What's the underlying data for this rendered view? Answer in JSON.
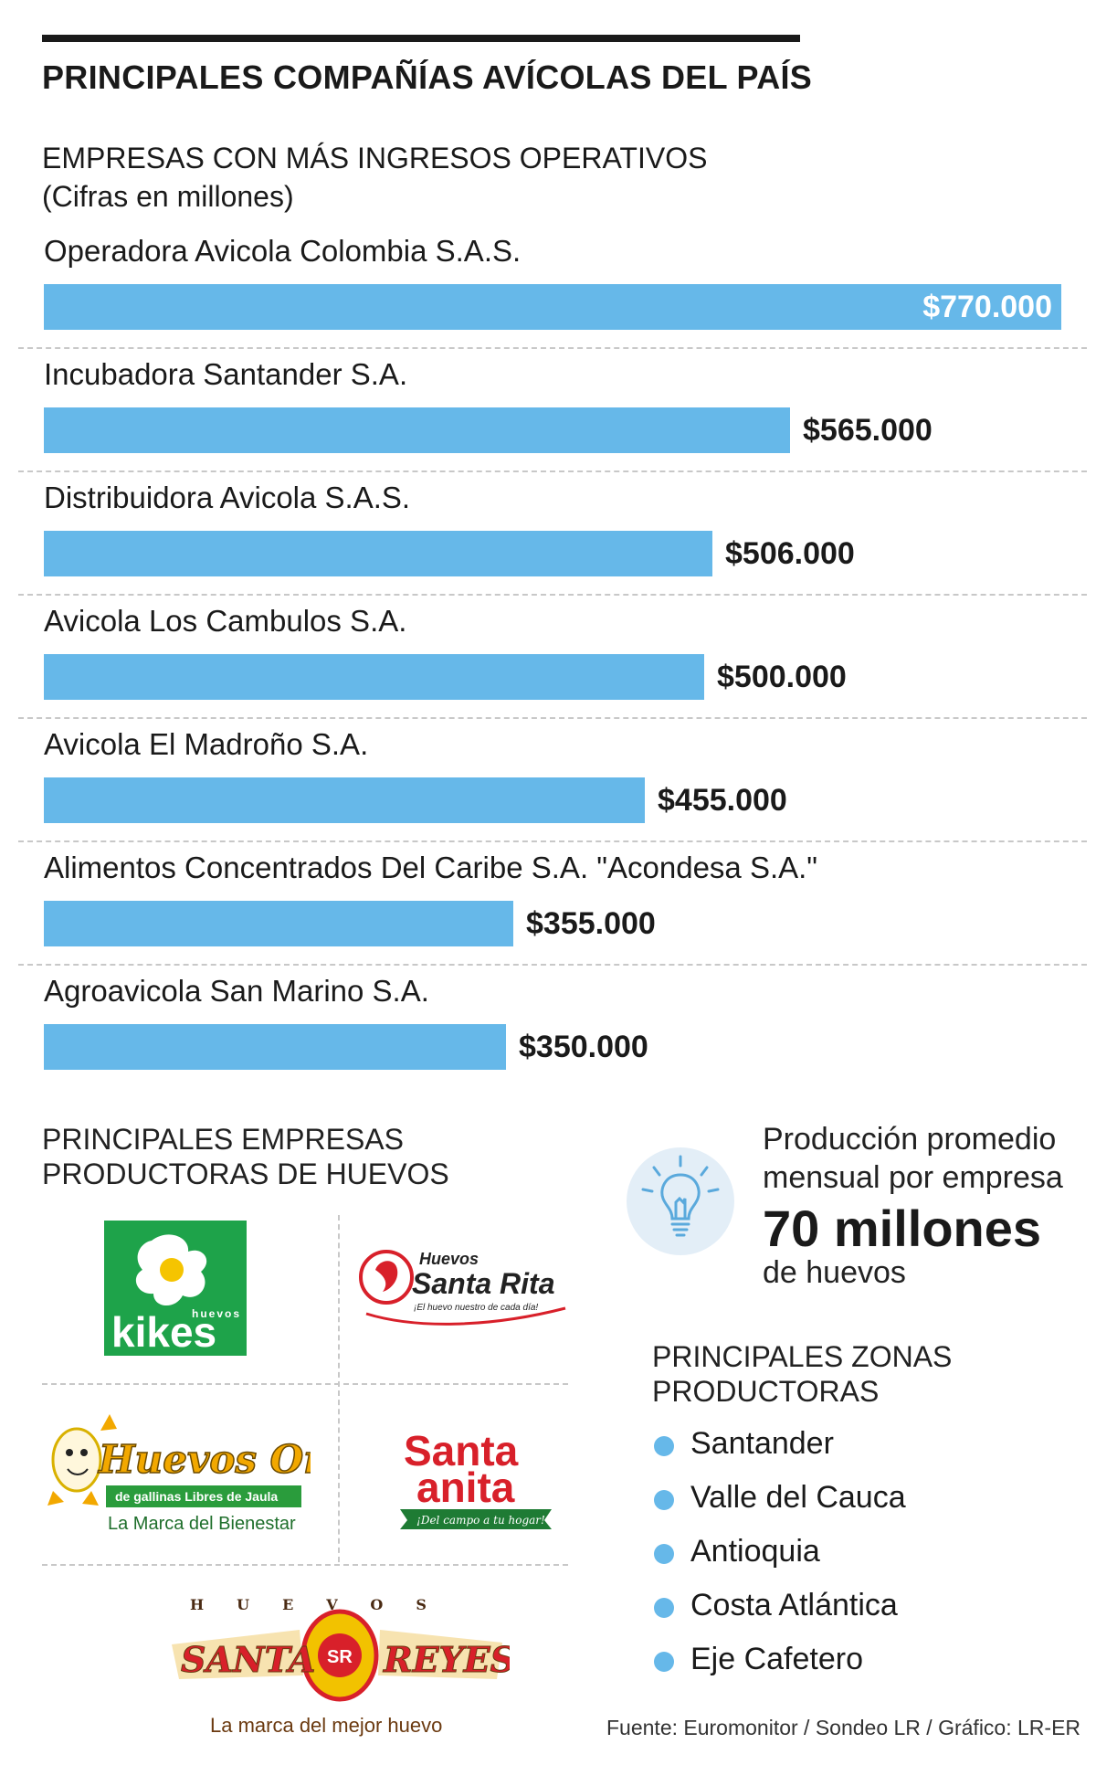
{
  "title": "PRINCIPALES COMPAÑÍAS AVÍCOLAS DEL PAÍS",
  "chart_data": {
    "type": "bar",
    "orientation": "horizontal",
    "title": "EMPRESAS CON MÁS INGRESOS OPERATIVOS",
    "subtitle": "(Cifras en millones)",
    "categories": [
      "Operadora Avicola Colombia S.A.S.",
      "Incubadora Santander S.A.",
      "Distribuidora Avicola S.A.S.",
      "Avicola Los Cambulos S.A.",
      "Avicola El Madroño S.A.",
      "Alimentos Concentrados Del Caribe S.A. \"Acondesa S.A.\"",
      "Agroavicola San Marino S.A."
    ],
    "values": [
      770000,
      565000,
      506000,
      500000,
      455000,
      355000,
      350000
    ],
    "value_labels": [
      "$770.000",
      "$565.000",
      "$506.000",
      "$500.000",
      "$455.000",
      "$355.000",
      "$350.000"
    ],
    "bar_color": "#66b8e9",
    "grid": false
  },
  "egg_producers": {
    "title_line1": "PRINCIPALES EMPRESAS",
    "title_line2": "PRODUCTORAS DE HUEVOS",
    "logos": [
      {
        "name": "kikes",
        "text": "kikes",
        "small": "huevos"
      },
      {
        "name": "santa-rita",
        "brand_top": "Huevos",
        "brand": "Santa Rita",
        "tagline": "¡El huevo nuestro de cada día!"
      },
      {
        "name": "huevos-oro",
        "brand": "Huevos Oro",
        "line1": "de gallinas Libres de Jaula",
        "line2": "La Marca del Bienestar"
      },
      {
        "name": "santa-anita",
        "line1": "Santa",
        "line2": "anita",
        "tagline": "¡Del campo a tu hogar!"
      },
      {
        "name": "santa-reyes",
        "arc": "HUEVOS",
        "left": "SANTA",
        "right": "REYES",
        "mark": "SR",
        "tagline": "La marca del mejor huevo"
      }
    ]
  },
  "production": {
    "icon": "lightbulb-icon",
    "line1": "Producción promedio",
    "line2": "mensual por empresa",
    "big": "70 millones",
    "line3": "de huevos"
  },
  "zones": {
    "title_line1": "PRINCIPALES ZONAS",
    "title_line2": "PRODUCTORAS",
    "items": [
      "Santander",
      "Valle del Cauca",
      "Antioquia",
      "Costa Atlántica",
      "Eje Cafetero"
    ],
    "dot_color": "#66b8e9"
  },
  "source": "Fuente: Euromonitor / Sondeo LR / Gráfico: LR-ER"
}
